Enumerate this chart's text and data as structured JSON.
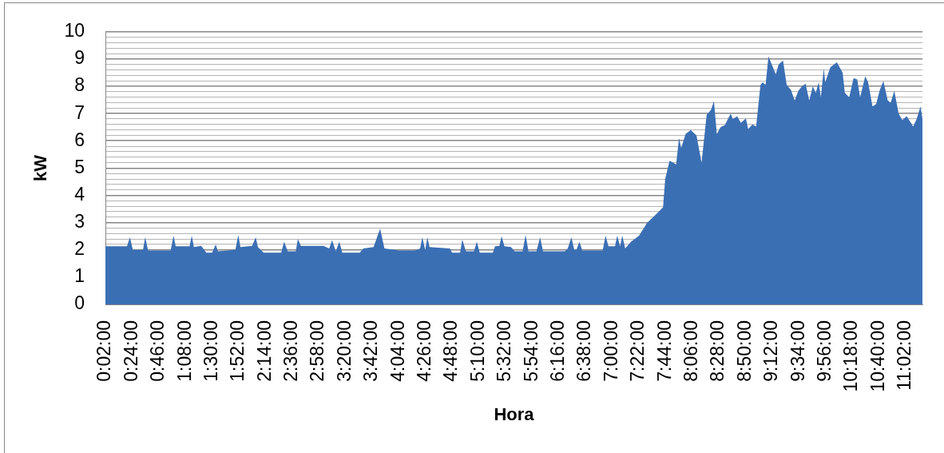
{
  "chart_data": {
    "type": "area",
    "xlabel": "Hora",
    "ylabel": "kW",
    "color": "#3b6fb4",
    "x": [
      0.0333,
      0.33,
      0.37,
      0.41,
      0.55,
      0.58,
      0.62,
      0.93,
      0.97,
      1.0,
      1.19,
      1.22,
      1.25,
      1.35,
      1.42,
      1.5,
      1.55,
      1.58,
      1.82,
      1.86,
      1.89,
      2.05,
      2.1,
      2.13,
      2.21,
      2.45,
      2.49,
      2.54,
      2.65,
      2.68,
      2.72,
      3.03,
      3.11,
      3.15,
      3.2,
      3.25,
      3.29,
      3.53,
      3.58,
      3.72,
      3.81,
      3.87,
      3.96,
      4.07,
      4.29,
      4.36,
      4.39,
      4.43,
      4.46,
      4.49,
      4.77,
      4.8,
      4.91,
      4.94,
      4.99,
      5.1,
      5.14,
      5.18,
      5.36,
      5.39,
      5.45,
      5.48,
      5.52,
      5.61,
      5.66,
      5.77,
      5.81,
      5.85,
      5.96,
      6.01,
      6.05,
      6.35,
      6.39,
      6.44,
      6.48,
      6.51,
      6.55,
      6.59,
      6.87,
      6.91,
      6.95,
      7.04,
      7.07,
      7.11,
      7.14,
      7.18,
      7.26,
      7.37,
      7.48,
      7.59,
      7.7,
      7.73,
      7.79,
      7.84,
      7.88,
      7.92,
      7.95,
      8.01,
      8.08,
      8.16,
      8.23,
      8.3,
      8.36,
      8.4,
      8.44,
      8.49,
      8.55,
      8.63,
      8.66,
      8.72,
      8.77,
      8.84,
      8.87,
      8.93,
      8.98,
      9.04,
      9.07,
      9.11,
      9.15,
      9.2,
      9.25,
      9.29,
      9.35,
      9.4,
      9.46,
      9.51,
      9.56,
      9.61,
      9.66,
      9.71,
      9.76,
      9.8,
      9.84,
      9.87,
      9.91,
      9.93,
      10.0,
      10.09,
      10.17,
      10.2,
      10.26,
      10.32,
      10.37,
      10.41,
      10.48,
      10.52,
      10.58,
      10.63,
      10.68,
      10.73,
      10.79,
      10.83,
      10.88,
      10.94,
      10.99,
      11.05,
      11.14,
      11.19,
      11.24,
      11.2667
    ],
    "values": [
      2.13,
      2.13,
      2.46,
      2.0,
      2.0,
      2.46,
      1.98,
      1.98,
      2.52,
      2.13,
      2.13,
      2.52,
      2.1,
      2.15,
      1.9,
      1.9,
      2.2,
      1.95,
      2.0,
      2.54,
      2.1,
      2.15,
      2.46,
      2.1,
      1.9,
      1.9,
      2.3,
      1.95,
      1.95,
      2.4,
      2.15,
      2.15,
      2.05,
      2.36,
      1.95,
      2.3,
      1.9,
      1.9,
      2.05,
      2.1,
      2.78,
      2.05,
      2.02,
      1.98,
      1.98,
      2.05,
      2.46,
      2.0,
      2.46,
      2.1,
      2.05,
      1.9,
      1.9,
      2.38,
      1.95,
      1.95,
      2.3,
      1.9,
      1.9,
      2.13,
      2.15,
      2.5,
      2.13,
      2.1,
      1.95,
      1.95,
      2.55,
      1.95,
      1.95,
      2.46,
      1.95,
      1.95,
      2.05,
      2.46,
      2.0,
      2.0,
      2.3,
      1.98,
      1.98,
      2.52,
      2.13,
      2.13,
      2.52,
      2.13,
      2.52,
      2.05,
      2.3,
      2.52,
      2.99,
      3.27,
      3.56,
      4.6,
      5.27,
      5.2,
      5.13,
      6.1,
      5.74,
      6.25,
      6.4,
      6.2,
      5.2,
      6.96,
      7.14,
      7.46,
      6.25,
      6.5,
      6.58,
      7.0,
      6.8,
      6.9,
      6.66,
      6.82,
      6.43,
      6.6,
      6.53,
      8.05,
      8.15,
      8.05,
      9.1,
      8.77,
      8.44,
      8.8,
      8.95,
      8.05,
      7.86,
      7.48,
      7.83,
      8.0,
      8.1,
      7.48,
      8.0,
      7.76,
      8.15,
      7.6,
      8.65,
      8.15,
      8.7,
      8.88,
      8.5,
      7.76,
      7.6,
      8.3,
      8.25,
      7.6,
      8.37,
      8.15,
      7.26,
      7.35,
      7.86,
      8.19,
      7.48,
      7.4,
      7.83,
      7.0,
      6.76,
      6.9,
      6.53,
      6.82,
      7.26,
      6.82
    ],
    "xlim": [
      0.0333,
      11.2667
    ],
    "xticks": [
      {
        "value": 0.0333,
        "label": "0:02:00"
      },
      {
        "value": 0.4,
        "label": "0:24:00"
      },
      {
        "value": 0.7667,
        "label": "0:46:00"
      },
      {
        "value": 1.1333,
        "label": "1:08:00"
      },
      {
        "value": 1.5,
        "label": "1:30:00"
      },
      {
        "value": 1.8667,
        "label": "1:52:00"
      },
      {
        "value": 2.2333,
        "label": "2:14:00"
      },
      {
        "value": 2.6,
        "label": "2:36:00"
      },
      {
        "value": 2.9667,
        "label": "2:58:00"
      },
      {
        "value": 3.3333,
        "label": "3:20:00"
      },
      {
        "value": 3.7,
        "label": "3:42:00"
      },
      {
        "value": 4.0667,
        "label": "4:04:00"
      },
      {
        "value": 4.4333,
        "label": "4:26:00"
      },
      {
        "value": 4.8,
        "label": "4:48:00"
      },
      {
        "value": 5.1667,
        "label": "5:10:00"
      },
      {
        "value": 5.5333,
        "label": "5:32:00"
      },
      {
        "value": 5.9,
        "label": "5:54:00"
      },
      {
        "value": 6.2667,
        "label": "6:16:00"
      },
      {
        "value": 6.6333,
        "label": "6:38:00"
      },
      {
        "value": 7.0,
        "label": "7:00:00"
      },
      {
        "value": 7.3667,
        "label": "7:22:00"
      },
      {
        "value": 7.7333,
        "label": "7:44:00"
      },
      {
        "value": 8.1,
        "label": "8:06:00"
      },
      {
        "value": 8.4667,
        "label": "8:28:00"
      },
      {
        "value": 8.8333,
        "label": "8:50:00"
      },
      {
        "value": 9.2,
        "label": "9:12:00"
      },
      {
        "value": 9.5667,
        "label": "9:34:00"
      },
      {
        "value": 9.9333,
        "label": "9:56:00"
      },
      {
        "value": 10.3,
        "label": "10:18:00"
      },
      {
        "value": 10.6667,
        "label": "10:40:00"
      },
      {
        "value": 11.0333,
        "label": "11:02:00"
      }
    ],
    "ylim": [
      0,
      10
    ],
    "yticks": [
      0,
      1,
      2,
      {
        "value": 2.2,
        "label": null
      },
      {
        "value": 2.4,
        "label": null
      },
      {
        "value": 2.6,
        "label": null
      },
      {
        "value": 2.8,
        "label": null
      },
      3,
      {
        "value": 3.2,
        "label": null
      },
      {
        "value": 3.4,
        "label": null
      },
      {
        "value": 3.6,
        "label": null
      },
      {
        "value": 3.8,
        "label": null
      },
      4,
      {
        "value": 4.2,
        "label": null
      },
      {
        "value": 4.4,
        "label": null
      },
      {
        "value": 4.6,
        "label": null
      },
      {
        "value": 4.8,
        "label": null
      },
      5,
      {
        "value": 5.2,
        "label": null
      },
      {
        "value": 5.4,
        "label": null
      },
      {
        "value": 5.6,
        "label": null
      },
      {
        "value": 5.8,
        "label": null
      },
      6,
      {
        "value": 6.2,
        "label": null
      },
      {
        "value": 6.4,
        "label": null
      },
      {
        "value": 6.6,
        "label": null
      },
      {
        "value": 6.8,
        "label": null
      },
      7,
      {
        "value": 7.2,
        "label": null
      },
      {
        "value": 7.4,
        "label": null
      },
      {
        "value": 7.6,
        "label": null
      },
      {
        "value": 7.8,
        "label": null
      },
      8,
      {
        "value": 8.2,
        "label": null
      },
      {
        "value": 8.4,
        "label": null
      },
      {
        "value": 8.6,
        "label": null
      },
      {
        "value": 8.8,
        "label": null
      },
      9,
      {
        "value": 9.2,
        "label": null
      },
      {
        "value": 9.4,
        "label": null
      },
      {
        "value": 9.6,
        "label": null
      },
      {
        "value": 9.8,
        "label": null
      },
      10
    ],
    "grid": "y"
  }
}
